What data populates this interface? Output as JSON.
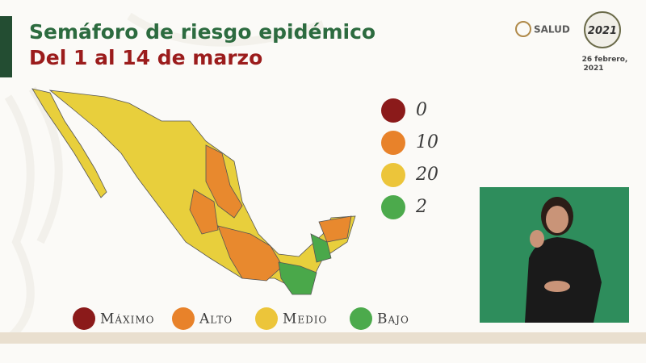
{
  "header": {
    "title": "Semáforo de riesgo epidémico",
    "subtitle": "Del 1 al 14 de marzo"
  },
  "branding": {
    "agency": "SALUD",
    "logo_year": "2021",
    "date_lines": [
      "26 febrero,",
      "2021"
    ]
  },
  "counts": [
    0,
    10,
    20,
    2
  ],
  "legend": [
    "Máximo",
    "Alto",
    "Medio",
    "Bajo"
  ]
}
